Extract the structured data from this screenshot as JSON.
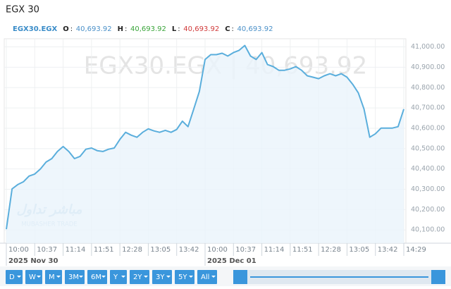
{
  "title": "EGX 30",
  "header": {
    "symbol": "EGX30.EGX",
    "ohlc": [
      {
        "key": "O",
        "value": "40,693.92",
        "color": "#4a90c8"
      },
      {
        "key": "H",
        "value": "40,693.92",
        "color": "#3aa53a"
      },
      {
        "key": "L",
        "value": "40,693.92",
        "color": "#d03a3a"
      },
      {
        "key": "C",
        "value": "40,693.92",
        "color": "#4a90c8"
      }
    ]
  },
  "watermark": "EGX30.EGX | 40,693.92",
  "logo": {
    "arabic": "مباشر تداول",
    "latin": "MUBASHER TRADE"
  },
  "buttons": [
    "D",
    "W",
    "M",
    "3M",
    "6M",
    "Y",
    "2Y",
    "3Y",
    "5Y",
    "All"
  ],
  "chart_data": {
    "type": "area",
    "categories": [
      "10:00",
      null,
      null,
      null,
      null,
      "10:37",
      null,
      null,
      null,
      null,
      "11:14",
      null,
      null,
      null,
      null,
      "11:51",
      null,
      null,
      null,
      null,
      "12:28",
      null,
      null,
      null,
      null,
      "13:05",
      null,
      null,
      null,
      null,
      "13:42",
      null,
      null,
      null,
      null,
      "10:00",
      null,
      null,
      null,
      null,
      "10:37",
      null,
      null,
      null,
      null,
      "11:14",
      null,
      null,
      null,
      null,
      "11:51",
      null,
      null,
      null,
      null,
      "12:28",
      null,
      null,
      null,
      null,
      "13:05",
      null,
      null,
      null,
      null,
      "13:42",
      null,
      null,
      null,
      null,
      "14:29"
    ],
    "date_labels": [
      "2025 Nov 30",
      "2025 Dec 01"
    ],
    "values": [
      40104,
      40302,
      40323,
      40337,
      40365,
      40375,
      40400,
      40434,
      40451,
      40486,
      40510,
      40486,
      40451,
      40462,
      40497,
      40503,
      40490,
      40486,
      40497,
      40503,
      40545,
      40580,
      40566,
      40556,
      40580,
      40597,
      40587,
      40580,
      40590,
      40580,
      40594,
      40635,
      40608,
      40694,
      40781,
      40938,
      40962,
      40962,
      40969,
      40955,
      40972,
      40983,
      41007,
      40955,
      40938,
      40972,
      40913,
      40903,
      40885,
      40885,
      40892,
      40903,
      40885,
      40858,
      40851,
      40844,
      40858,
      40868,
      40858,
      40868,
      40851,
      40816,
      40774,
      40694,
      40556,
      40573,
      40601,
      40601,
      40601,
      40608,
      40694
    ],
    "color": "#5aaedc",
    "fill": "#eaf4fb",
    "ylim": [
      40035,
      41040
    ],
    "yticks": [
      {
        "value": 40100,
        "label": "40,100.00"
      },
      {
        "value": 40200,
        "label": "40,200.00"
      },
      {
        "value": 40300,
        "label": "40,300.00"
      },
      {
        "value": 40400,
        "label": "40,400.00"
      },
      {
        "value": 40500,
        "label": "40,500.00"
      },
      {
        "value": 40600,
        "label": "40,600.00"
      },
      {
        "value": 40700,
        "label": "40,700.00"
      },
      {
        "value": 40800,
        "label": "40,800.00"
      },
      {
        "value": 40900,
        "label": "40,900.00"
      },
      {
        "value": 41000,
        "label": "41,000.00"
      }
    ],
    "grid": true
  }
}
